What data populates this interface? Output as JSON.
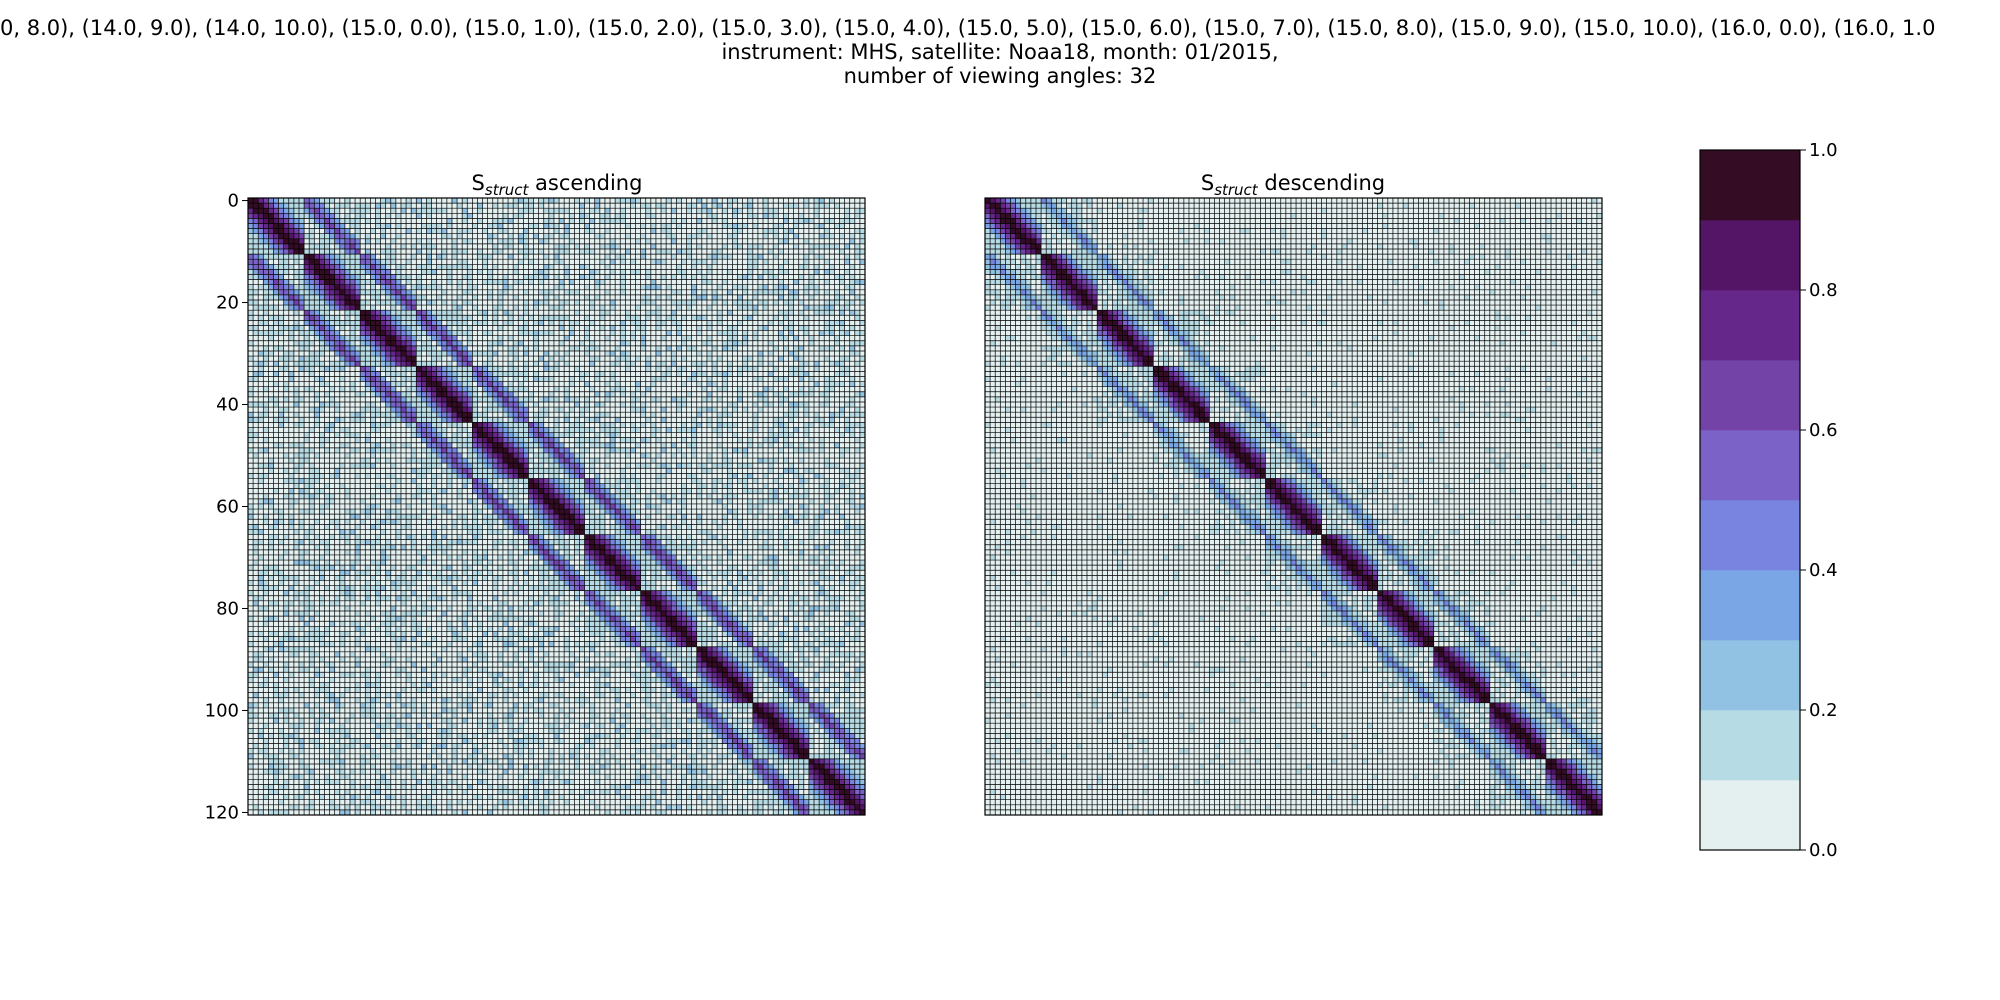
{
  "figure": {
    "title_lines": [
      "0, 8.0), (14.0, 9.0), (14.0, 10.0), (15.0, 0.0), (15.0, 1.0), (15.0, 2.0), (15.0, 3.0), (15.0, 4.0), (15.0, 5.0), (15.0, 6.0), (15.0, 7.0), (15.0, 8.0), (15.0, 9.0), (15.0, 10.0), (16.0, 0.0), (16.0, 1.0",
      "instrument: MHS, satellite: Noaa18, month: 01/2015,",
      "number of viewing angles: 32"
    ]
  },
  "chart_data": [
    {
      "type": "heatmap",
      "title_main": "S",
      "title_sub": "struct",
      "title_rest": " ascending",
      "matrix_size": 121,
      "yticks": [
        0,
        20,
        40,
        60,
        80,
        100,
        120
      ],
      "xticks": [],
      "vmin": 0.0,
      "vmax": 1.0,
      "structure": {
        "block_size": 11,
        "n_blocks": 11,
        "diagonal_block_value": 1.0,
        "adjacent_block_value": 0.55,
        "background_value": 0.05
      }
    },
    {
      "type": "heatmap",
      "title_main": "S",
      "title_sub": "struct",
      "title_rest": " descending",
      "matrix_size": 121,
      "yticks": [],
      "xticks": [],
      "vmin": 0.0,
      "vmax": 1.0,
      "structure": {
        "block_size": 11,
        "n_blocks": 11,
        "diagonal_block_value": 1.0,
        "adjacent_block_value": 0.35,
        "background_value": 0.02
      }
    }
  ],
  "colorbar": {
    "ticks": [
      0.0,
      0.2,
      0.4,
      0.6,
      0.8,
      1.0
    ],
    "tick_labels": [
      "0.0",
      "0.2",
      "0.4",
      "0.6",
      "0.8",
      "1.0"
    ],
    "colors": [
      "#e4f0f0",
      "#b7dbe4",
      "#91c2e3",
      "#7aa6e5",
      "#7884df",
      "#7a62c6",
      "#7343a8",
      "#66278a",
      "#551566",
      "#340c24"
    ]
  }
}
